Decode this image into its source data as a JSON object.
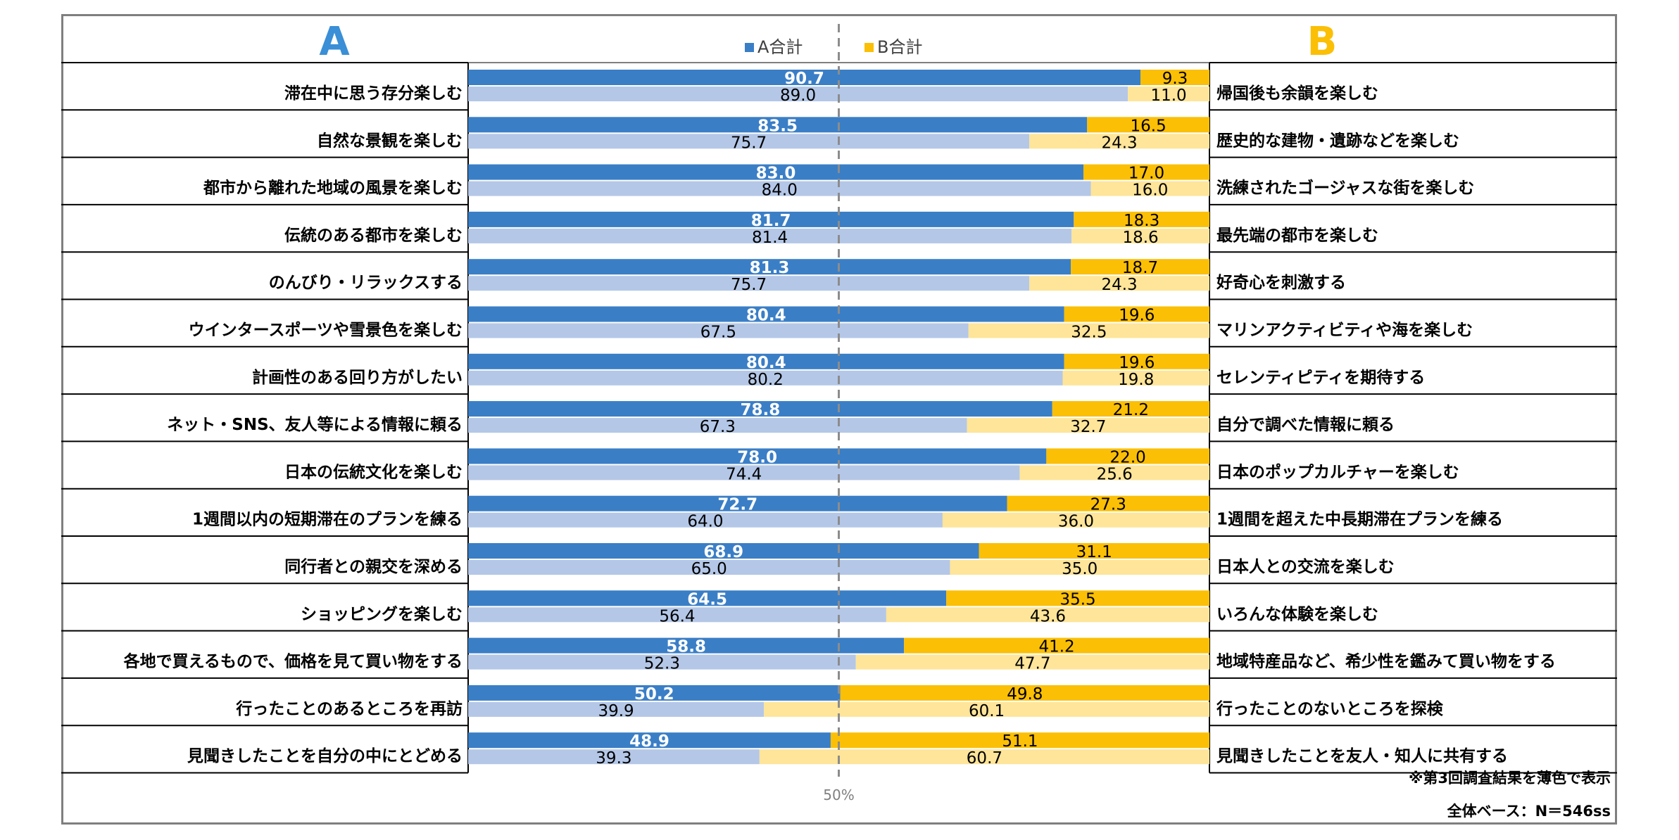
{
  "chart_data": {
    "type": "bar",
    "orientation": "horizontal",
    "stacked": true,
    "xlim": [
      0,
      100
    ],
    "reference_line": {
      "value": 50,
      "label": "50%"
    },
    "side_a_heading": "A",
    "side_b_heading": "B",
    "legend": [
      {
        "name": "A合計",
        "color": "#3a7ec6"
      },
      {
        "name": "B合計",
        "color": "#fbbf06"
      }
    ],
    "colors": {
      "a_current": "#3a7ec6",
      "b_current": "#fbbf06",
      "a_previous": "#b4c7e7",
      "b_previous": "#fee599",
      "heading_a": "#3a8fd6",
      "heading_b": "#fbbf06"
    },
    "categories_a": [
      "滞在中に思う存分楽しむ",
      "自然な景観を楽しむ",
      "都市から離れた地域の風景を楽しむ",
      "伝統のある都市を楽しむ",
      "のんびり・リラックスする",
      "ウインタースポーツや雪景色を楽しむ",
      "計画性のある回り方がしたい",
      "ネット・SNS、友人等による情報に頼る",
      "日本の伝統文化を楽しむ",
      "1週間以内の短期滞在のプランを練る",
      "同行者との親交を深める",
      "ショッピングを楽しむ",
      "各地で買えるもので、価格を見て買い物をする",
      "行ったことのあるところを再訪",
      "見聞きしたことを自分の中にとどめる"
    ],
    "categories_b": [
      "帰国後も余韻を楽しむ",
      "歴史的な建物・遺跡などを楽しむ",
      "洗練されたゴージャスな街を楽しむ",
      "最先端の都市を楽しむ",
      "好奇心を刺激する",
      "マリンアクティビティや海を楽しむ",
      "セレンティピティを期待する",
      "自分で調べた情報に頼る",
      "日本のポップカルチャーを楽しむ",
      "1週間を超えた中長期滞在プランを練る",
      "日本人との交流を楽しむ",
      "いろんな体験を楽しむ",
      "地域特産品など、希少性を鑑みて買い物をする",
      "行ったことのないところを探検",
      "見聞きしたことを友人・知人に共有する"
    ],
    "series": [
      {
        "name": "A合計",
        "values": [
          "90.7",
          "83.5",
          "83.0",
          "81.7",
          "81.3",
          "80.4",
          "80.4",
          "78.8",
          "78.0",
          "72.7",
          "68.9",
          "64.5",
          "58.8",
          "50.2",
          "48.9"
        ]
      },
      {
        "name": "B合計",
        "values": [
          "9.3",
          "16.5",
          "17.0",
          "18.3",
          "18.7",
          "19.6",
          "19.6",
          "21.2",
          "22.0",
          "27.3",
          "31.1",
          "35.5",
          "41.2",
          "49.8",
          "51.1"
        ]
      },
      {
        "values": [
          "89.0",
          "75.7",
          "84.0",
          "81.4",
          "75.7",
          "67.5",
          "80.2",
          "67.3",
          "74.4",
          "64.0",
          "65.0",
          "56.4",
          "52.3",
          "39.9",
          "39.3"
        ]
      },
      {
        "values": [
          "11.0",
          "24.3",
          "16.0",
          "18.6",
          "24.3",
          "32.5",
          "19.8",
          "32.7",
          "25.6",
          "36.0",
          "35.0",
          "43.6",
          "47.7",
          "60.1",
          "60.7"
        ]
      }
    ],
    "notes": [
      "※第3回調査結果を薄色で表示",
      "全体ベース：N＝546ss"
    ]
  }
}
